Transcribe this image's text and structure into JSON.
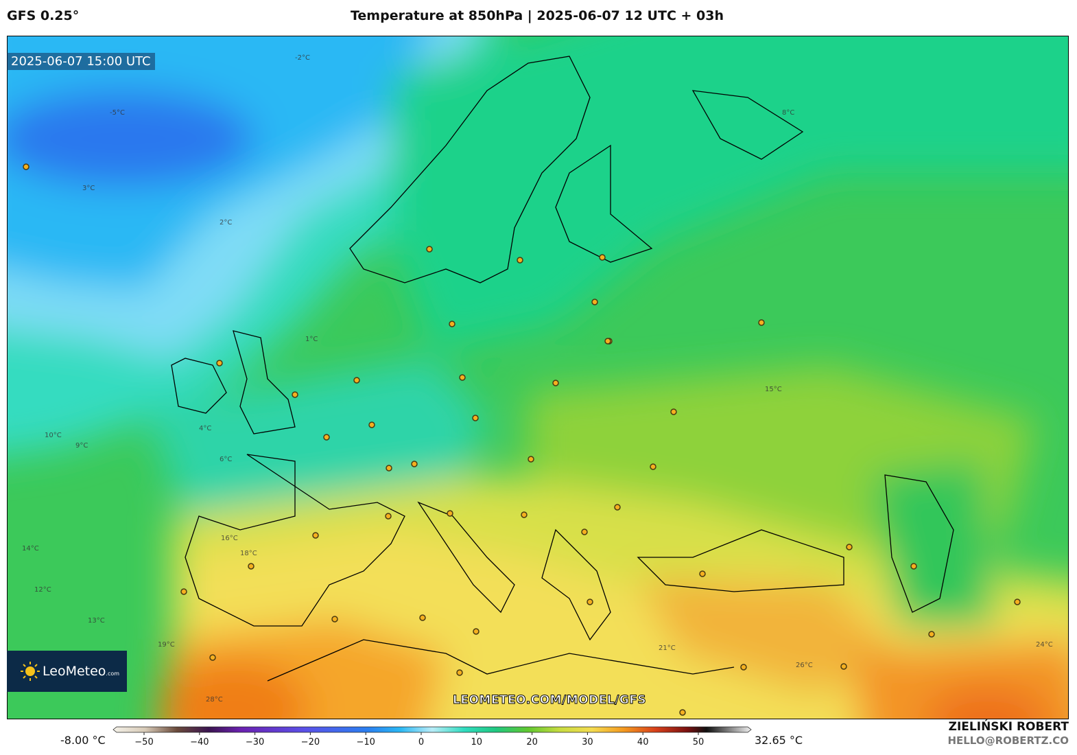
{
  "header": {
    "model": "GFS 0.25°",
    "title": "Temperature at 850hPa | 2025-06-07 12 UTC + 03h"
  },
  "map": {
    "timestamp": "2025-06-07 15:00 UTC",
    "watermark": "LEOMETEO.COM/MODEL/GFS",
    "logo": {
      "name": "LeoMeteo",
      "domain": ".com"
    },
    "contour_labels": [
      "2°C",
      "-5°C",
      "3°C",
      "-2°C",
      "1°C",
      "4°C",
      "6°C",
      "9°C",
      "10°C",
      "12°C",
      "13°C",
      "14°C",
      "15°C",
      "16°C",
      "18°C",
      "19°C",
      "21°C",
      "24°C",
      "26°C",
      "28°C",
      "8°C"
    ]
  },
  "colorbar": {
    "min_label": "-8.00 °C",
    "max_label": "32.65 °C",
    "ticks": [
      {
        "value": -50,
        "label": "−50"
      },
      {
        "value": -40,
        "label": "−40"
      },
      {
        "value": -30,
        "label": "−30"
      },
      {
        "value": -20,
        "label": "−20"
      },
      {
        "value": -10,
        "label": "−10"
      },
      0,
      10,
      20,
      30,
      40,
      50
    ]
  },
  "footer": {
    "author": "ZIELIŃSKI ROBERT",
    "email": "HELLO@ROBERTZ.CO"
  }
}
